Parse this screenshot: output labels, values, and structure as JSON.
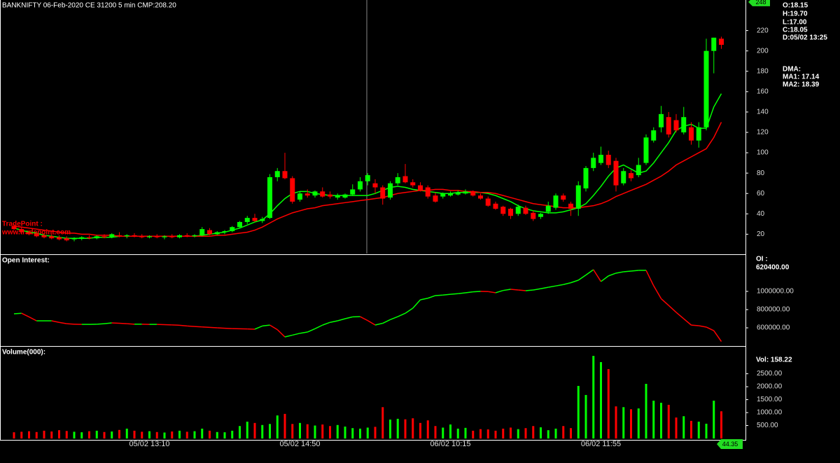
{
  "chart_data": [
    {
      "type": "candlestick",
      "title": "BANKNIFTY 06-Feb-2020 CE 31200 5 min CMP:208.20",
      "info": [
        "O:18.15",
        "H:19.70",
        "L:17.00",
        "C:18.05",
        "D:05/02 13:25"
      ],
      "dma": {
        "title": "DMA:",
        "items": [
          "MA1: 17.14",
          "MA2: 18.39"
        ]
      },
      "watermark": [
        "TradePoint :",
        "www.tradepoint.com"
      ],
      "marker": 248,
      "up_color": "#00ff00",
      "down_color": "#ff0000",
      "open": [
        28,
        25,
        22,
        21,
        19,
        18,
        17,
        16,
        15,
        16,
        17,
        16,
        18,
        17,
        19,
        18,
        19,
        18,
        17,
        18,
        17,
        18,
        17,
        19,
        18,
        19,
        24,
        20,
        22,
        23,
        27,
        32,
        36,
        33,
        36,
        76,
        82,
        75,
        54,
        60,
        58,
        62,
        59,
        56,
        56,
        59,
        64,
        72,
        70,
        66,
        56,
        70,
        77,
        71,
        68,
        66,
        58,
        57,
        58,
        59,
        60,
        62,
        58,
        55,
        50,
        47,
        45,
        40,
        46,
        41,
        37,
        42,
        46,
        58,
        50,
        45,
        65,
        85,
        90,
        98,
        92,
        70,
        80,
        78,
        90,
        112,
        125,
        135,
        132,
        120,
        125,
        112,
        125,
        200,
        212
      ],
      "high": [
        30,
        27,
        24,
        22,
        21,
        20,
        19,
        18,
        17,
        18,
        19,
        19,
        20,
        21,
        22,
        20,
        21,
        20,
        19,
        20,
        19,
        20,
        20,
        21,
        20,
        27,
        26,
        23,
        24,
        28,
        33,
        38,
        40,
        37,
        79,
        85,
        100,
        77,
        62,
        64,
        63,
        66,
        62,
        60,
        60,
        69,
        76,
        80,
        74,
        68,
        72,
        80,
        89,
        74,
        71,
        68,
        61,
        61,
        62,
        63,
        64,
        63,
        60,
        57,
        52,
        48,
        46,
        49,
        48,
        43,
        41,
        52,
        60,
        60,
        52,
        72,
        87,
        100,
        106,
        102,
        95,
        85,
        83,
        95,
        118,
        125,
        146,
        140,
        138,
        145,
        130,
        130,
        212,
        213,
        214
      ],
      "low": [
        24,
        21,
        19,
        17,
        16,
        15,
        14,
        13,
        13,
        14,
        15,
        15,
        16,
        16,
        17,
        16,
        17,
        16,
        16,
        16,
        15,
        16,
        16,
        17,
        17,
        18,
        19,
        19,
        20,
        22,
        26,
        30,
        32,
        31,
        35,
        72,
        74,
        50,
        52,
        56,
        56,
        56,
        55,
        54,
        55,
        58,
        62,
        68,
        60,
        49,
        54,
        68,
        70,
        66,
        62,
        55,
        51,
        55,
        57,
        58,
        59,
        57,
        54,
        47,
        44,
        38,
        35,
        38,
        39,
        33,
        35,
        40,
        44,
        52,
        38,
        38,
        62,
        82,
        88,
        85,
        62,
        68,
        72,
        76,
        88,
        110,
        120,
        115,
        120,
        118,
        108,
        105,
        122,
        178,
        202
      ],
      "close": [
        25,
        22,
        20,
        18,
        17,
        16,
        15,
        14,
        16,
        17,
        16,
        18,
        17,
        20,
        18,
        19,
        18,
        17,
        18,
        17,
        18,
        17,
        19,
        18,
        19,
        25,
        20,
        22,
        23,
        27,
        32,
        36,
        33,
        35,
        76,
        82,
        75,
        52,
        60,
        58,
        62,
        57,
        57,
        58,
        59,
        64,
        72,
        78,
        66,
        55,
        70,
        76,
        71,
        68,
        63,
        57,
        52,
        60,
        60,
        61,
        62,
        58,
        55,
        48,
        45,
        40,
        38,
        47,
        40,
        35,
        40,
        48,
        58,
        54,
        45,
        68,
        85,
        95,
        98,
        88,
        68,
        82,
        75,
        88,
        115,
        122,
        138,
        118,
        122,
        135,
        112,
        125,
        200,
        213,
        206
      ],
      "series": [
        {
          "color": "#00ff00",
          "values": [
            26,
            24,
            22,
            21,
            19,
            18,
            17,
            16,
            16,
            16,
            16,
            17,
            17,
            17,
            18,
            18,
            18,
            18,
            18,
            18,
            18,
            18,
            18,
            18,
            18,
            19,
            20,
            21,
            22,
            24,
            26,
            29,
            32,
            34,
            40,
            48,
            55,
            60,
            62,
            62,
            60,
            59,
            58,
            58,
            58,
            58,
            58,
            58,
            60,
            63,
            66,
            67,
            66,
            64,
            63,
            62,
            61,
            60,
            60,
            61,
            61,
            61,
            61,
            60,
            58,
            55,
            52,
            48,
            45,
            43,
            42,
            41,
            41,
            42,
            44,
            46,
            50,
            58,
            67,
            77,
            85,
            88,
            84,
            80,
            82,
            90,
            100,
            110,
            122,
            126,
            128,
            124,
            124,
            145,
            158
          ]
        },
        {
          "color": "#ff0000",
          "values": [
            28,
            27,
            26,
            25,
            24,
            23,
            22,
            21,
            21,
            20,
            20,
            19,
            19,
            19,
            18,
            18,
            18,
            18,
            18,
            18,
            18,
            18,
            18,
            18,
            18,
            18,
            18,
            19,
            19,
            20,
            21,
            22,
            24,
            27,
            31,
            35,
            38,
            41,
            43,
            45,
            46,
            48,
            49,
            50,
            51,
            52,
            53,
            54,
            55,
            56,
            58,
            60,
            61,
            62,
            63,
            63,
            64,
            64,
            63,
            63,
            62,
            62,
            61,
            61,
            60,
            58,
            56,
            54,
            52,
            50,
            49,
            48,
            47,
            46,
            46,
            46,
            47,
            48,
            50,
            53,
            57,
            60,
            63,
            66,
            69,
            73,
            77,
            82,
            88,
            92,
            96,
            100,
            104,
            115,
            130
          ]
        }
      ],
      "ylim": [
        1,
        250
      ],
      "yticks": [
        20,
        40,
        60,
        80,
        100,
        120,
        140,
        160,
        180,
        200,
        220
      ]
    },
    {
      "type": "line",
      "title": "Open Interest:",
      "current_label": "OI :",
      "current_value": "620400.00",
      "up_color": "#00ff00",
      "down_color": "#ff0000",
      "values": [
        754000,
        760000,
        720000,
        677000,
        677000,
        677000,
        660000,
        645000,
        640000,
        638000,
        638000,
        640000,
        645000,
        654000,
        650000,
        645000,
        640000,
        640000,
        638000,
        638000,
        635000,
        632000,
        628000,
        620000,
        615000,
        610000,
        605000,
        600000,
        595000,
        592000,
        590000,
        588000,
        585000,
        620000,
        630000,
        580000,
        500000,
        520000,
        540000,
        554000,
        590000,
        630000,
        660000,
        677000,
        700000,
        720000,
        723000,
        680000,
        631000,
        650000,
        690000,
        723000,
        760000,
        815000,
        908000,
        925000,
        954000,
        960000,
        968000,
        975000,
        985000,
        995000,
        1000000,
        998000,
        985000,
        1010000,
        1023000,
        1015000,
        1008000,
        1015000,
        1030000,
        1045000,
        1060000,
        1075000,
        1095000,
        1123000,
        1180000,
        1238000,
        1108000,
        1170000,
        1200000,
        1215000,
        1223000,
        1231000,
        1231000,
        1062000,
        920000,
        846000,
        770000,
        700000,
        630000,
        623000,
        608000,
        569000,
        450000
      ],
      "ylim": [
        408000,
        1392000
      ],
      "yticks": [
        {
          "value": 600000,
          "label": "600000.00"
        },
        {
          "value": 800000,
          "label": "800000.00"
        },
        {
          "value": 1000000,
          "label": "1000000.00"
        }
      ]
    },
    {
      "type": "bar",
      "title": "Volume(000):",
      "summary": "Vol: 158.22",
      "marker_label": "44.35",
      "values": [
        240,
        260,
        280,
        250,
        300,
        270,
        320,
        290,
        260,
        240,
        280,
        300,
        250,
        270,
        330,
        380,
        300,
        260,
        280,
        250,
        230,
        270,
        300,
        260,
        280,
        380,
        300,
        250,
        240,
        300,
        480,
        650,
        600,
        520,
        560,
        890,
        950,
        560,
        600,
        550,
        500,
        540,
        480,
        520,
        460,
        400,
        380,
        420,
        450,
        1210,
        730,
        760,
        740,
        780,
        600,
        700,
        480,
        420,
        540,
        380,
        410,
        300,
        360,
        350,
        300,
        380,
        420,
        360,
        400,
        480,
        430,
        320,
        380,
        480,
        400,
        2030,
        1680,
        3190,
        2950,
        2680,
        1240,
        1210,
        1130,
        1160,
        2110,
        1460,
        1380,
        1300,
        810,
        860,
        680,
        650,
        570,
        1460,
        1050
      ],
      "categories": [
        null,
        null,
        null,
        null,
        null,
        null,
        null,
        null,
        null,
        null,
        null,
        null,
        null,
        null,
        null,
        null,
        null,
        null,
        "05/02 13:10",
        null,
        null,
        null,
        null,
        null,
        null,
        null,
        null,
        null,
        null,
        null,
        null,
        null,
        null,
        null,
        null,
        null,
        null,
        null,
        "05/02 14:50",
        null,
        null,
        null,
        null,
        null,
        null,
        null,
        null,
        null,
        null,
        null,
        null,
        null,
        null,
        null,
        null,
        null,
        null,
        null,
        "06/02 10:15",
        null,
        null,
        null,
        null,
        null,
        null,
        null,
        null,
        null,
        null,
        null,
        null,
        null,
        null,
        null,
        null,
        null,
        null,
        null,
        "06/02 11:55",
        null,
        null,
        null,
        null,
        null,
        null,
        null,
        null,
        null,
        null,
        null,
        null,
        null,
        null,
        null,
        null
      ],
      "ylim": [
        0,
        3490
      ],
      "yticks": [
        {
          "value": 500,
          "label": "500.00"
        },
        {
          "value": 1000,
          "label": "1000.00"
        },
        {
          "value": 1500,
          "label": "1500.00"
        },
        {
          "value": 2000,
          "label": "2000.00"
        },
        {
          "value": 2500,
          "label": "2500.00"
        }
      ]
    }
  ]
}
